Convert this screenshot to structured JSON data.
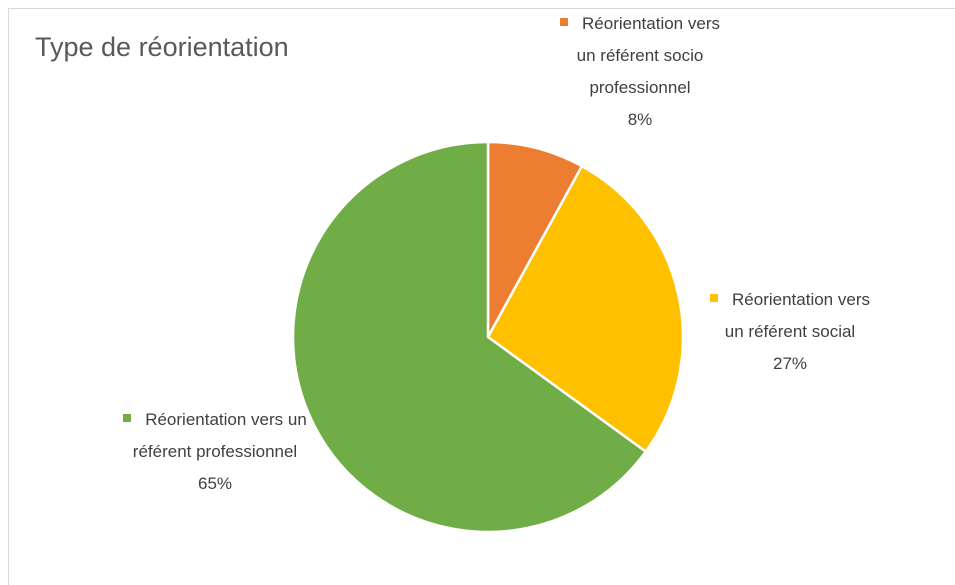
{
  "chart_data": {
    "type": "pie",
    "title": "Type de réorientation",
    "categories": [
      "Réorientation vers un référent socio professionnel",
      "Réorientation vers un référent social",
      "Réorientation vers un référent professionnel"
    ],
    "values": [
      8,
      27,
      65
    ],
    "value_labels": [
      "8%",
      "27%",
      "65%"
    ],
    "colors": [
      "#ED7D31",
      "#FFC000",
      "#70AD47"
    ]
  }
}
